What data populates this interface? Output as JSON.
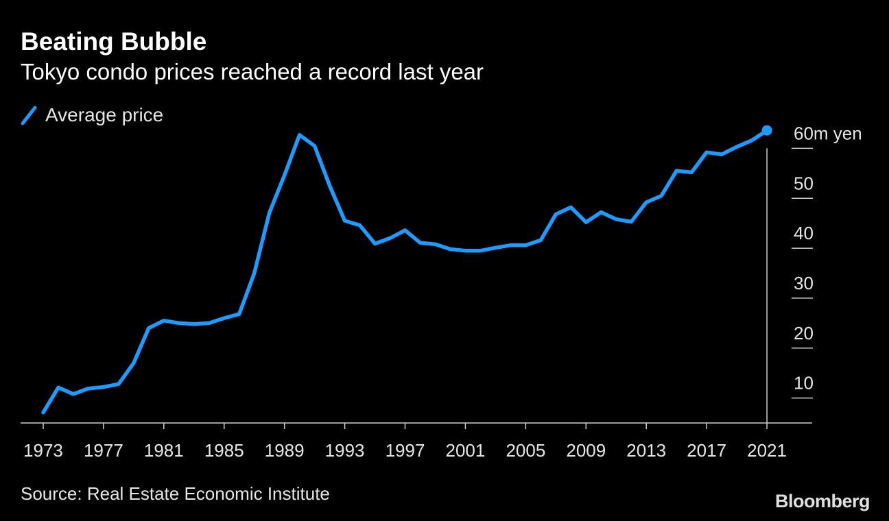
{
  "chart_data": {
    "type": "line",
    "title": "Beating Bubble",
    "subtitle": "Tokyo condo prices reached a record last year",
    "legend": [
      "Average price"
    ],
    "source": "Source: Real Estate Economic Institute",
    "brand": "Bloomberg",
    "x": [
      1973,
      1974,
      1975,
      1976,
      1977,
      1978,
      1979,
      1980,
      1981,
      1982,
      1983,
      1984,
      1985,
      1986,
      1987,
      1988,
      1989,
      1990,
      1991,
      1992,
      1993,
      1994,
      1995,
      1996,
      1997,
      1998,
      1999,
      2000,
      2001,
      2002,
      2003,
      2004,
      2005,
      2006,
      2007,
      2008,
      2009,
      2010,
      2011,
      2012,
      2013,
      2014,
      2015,
      2016,
      2017,
      2018,
      2019,
      2020,
      2021
    ],
    "series": [
      {
        "name": "Average price",
        "color": "#1e9bff",
        "values": [
          7.1,
          12.1,
          10.8,
          11.9,
          12.2,
          12.8,
          17.0,
          24.0,
          25.5,
          25.0,
          24.8,
          25.0,
          26.0,
          26.8,
          35.0,
          47.1,
          54.6,
          62.7,
          60.5,
          52.5,
          45.5,
          44.6,
          40.9,
          42.0,
          43.6,
          41.1,
          40.8,
          39.8,
          39.5,
          39.5,
          40.1,
          40.6,
          40.6,
          41.6,
          46.8,
          48.2,
          45.2,
          47.2,
          45.8,
          45.3,
          49.2,
          50.5,
          55.5,
          55.2,
          59.2,
          58.8,
          60.3,
          61.6,
          63.6
        ]
      }
    ],
    "x_ticks": [
      1973,
      1977,
      1981,
      1985,
      1989,
      1993,
      1997,
      2001,
      2005,
      2009,
      2013,
      2017,
      2021
    ],
    "y_ticks": [
      {
        "value": 10,
        "label": "10"
      },
      {
        "value": 20,
        "label": "20"
      },
      {
        "value": 30,
        "label": "30"
      },
      {
        "value": 40,
        "label": "40"
      },
      {
        "value": 50,
        "label": "50"
      },
      {
        "value": 60,
        "label": "60m yen"
      }
    ],
    "ylim": [
      5,
      65
    ],
    "xlim": [
      1971.5,
      2024.0
    ],
    "xlabel": "",
    "ylabel": ""
  }
}
